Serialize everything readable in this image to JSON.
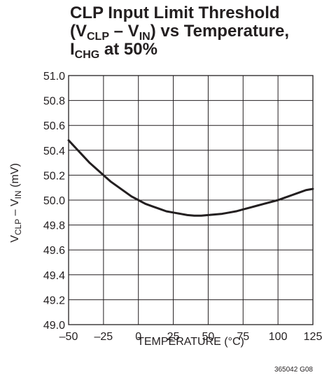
{
  "chart_data": {
    "type": "line",
    "title": {
      "line1": "CLP Input Limit Threshold",
      "line2_open": "(V",
      "line2_sub1": "CLP",
      "line2_mid": " – V",
      "line2_sub2": "IN",
      "line2_close": ") vs Temperature,",
      "line3_main": "I",
      "line3_sub": "CHG",
      "line3_rest": " at 50%"
    },
    "xlabel": "TEMPERATURE (°C)",
    "ylabel": {
      "main1": "V",
      "sub1": "CLP",
      "mid": " – V",
      "sub2": "IN",
      "rest": " (mV)"
    },
    "xlim": [
      -50,
      125
    ],
    "ylim": [
      49.0,
      51.0
    ],
    "x_ticks": [
      "–50",
      "–25",
      "0",
      "25",
      "50",
      "75",
      "100",
      "125"
    ],
    "x_tick_values": [
      -50,
      -25,
      0,
      25,
      50,
      75,
      100,
      125
    ],
    "y_ticks": [
      "51.0",
      "50.8",
      "50.6",
      "50.4",
      "50.2",
      "50.0",
      "49.8",
      "49.6",
      "49.4",
      "49.2",
      "49.0"
    ],
    "y_tick_values": [
      51.0,
      50.8,
      50.6,
      50.4,
      50.2,
      50.0,
      49.8,
      49.6,
      49.4,
      49.2,
      49.0
    ],
    "grid": true,
    "series": [
      {
        "x": [
          -50,
          -45,
          -40,
          -35,
          -30,
          -25,
          -20,
          -15,
          -10,
          -5,
          0,
          5,
          10,
          15,
          20,
          25,
          30,
          35,
          40,
          45,
          50,
          55,
          60,
          65,
          70,
          75,
          80,
          85,
          90,
          95,
          100,
          105,
          110,
          115,
          120,
          125
        ],
        "y": [
          50.48,
          50.42,
          50.36,
          50.3,
          50.25,
          50.2,
          50.15,
          50.11,
          50.07,
          50.03,
          50.0,
          49.97,
          49.95,
          49.93,
          49.91,
          49.9,
          49.89,
          49.88,
          49.875,
          49.875,
          49.88,
          49.885,
          49.89,
          49.9,
          49.91,
          49.925,
          49.94,
          49.955,
          49.97,
          49.985,
          50.0,
          50.02,
          50.04,
          50.06,
          50.08,
          50.09
        ]
      }
    ],
    "figure_id": "365042 G08"
  }
}
